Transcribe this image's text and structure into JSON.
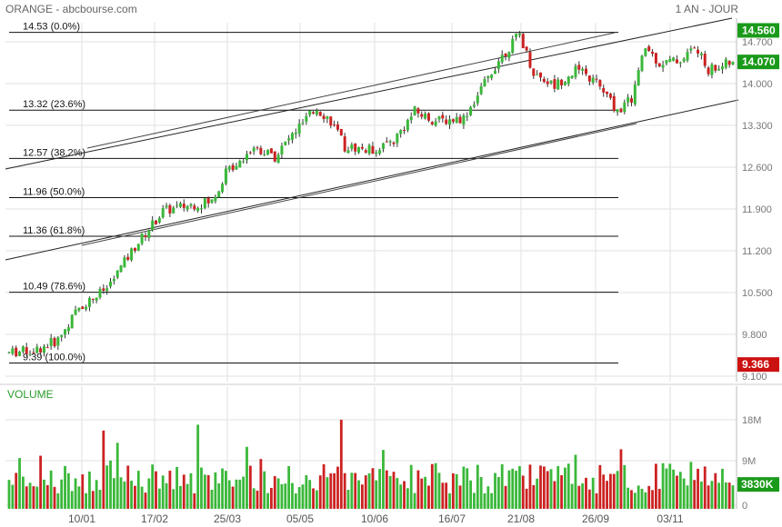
{
  "header": {
    "title": "ORANGE - abcbourse.com",
    "period": "1 AN - JOUR"
  },
  "chart_data": {
    "type": "candlestick",
    "price_axis": {
      "ticks": [
        "14.700",
        "14.000",
        "13.300",
        "12.600",
        "11.900",
        "11.200",
        "10.500",
        "9.800",
        "9.100"
      ],
      "range": [
        9.1,
        14.75
      ]
    },
    "price_badges": [
      {
        "label": "14.560",
        "value": 14.56,
        "color": "#1a9a1a"
      },
      {
        "label": "14.070",
        "value": 14.07,
        "color": "#1a9a1a"
      },
      {
        "label": "9.366",
        "value": 9.366,
        "color": "#cc1111"
      }
    ],
    "fibonacci": [
      {
        "label": "14.53  (0.0%)",
        "value": 14.53
      },
      {
        "label": "13.32  (23.6%)",
        "value": 13.32
      },
      {
        "label": "12.57  (38.2%)",
        "value": 12.57
      },
      {
        "label": "11.96  (50.0%)",
        "value": 11.96
      },
      {
        "label": "11.36  (61.8%)",
        "value": 11.36
      },
      {
        "label": "10.49  (78.6%)",
        "value": 10.49
      },
      {
        "label": "9.39  (100.0%)",
        "value": 9.39
      }
    ],
    "x_ticks": [
      "10/01",
      "17/02",
      "25/03",
      "05/05",
      "10/06",
      "16/07",
      "21/08",
      "26/09",
      "03/11"
    ],
    "volume_panel": {
      "label": "VOLUME",
      "ticks": [
        "18M",
        "9M",
        "0"
      ],
      "range": [
        0,
        20
      ],
      "badge": "3830K",
      "badge_value": 3.83
    },
    "anchors": [
      [
        0,
        9.55
      ],
      [
        8,
        9.6
      ],
      [
        14,
        9.75
      ],
      [
        20,
        10.25
      ],
      [
        28,
        10.55
      ],
      [
        36,
        11.2
      ],
      [
        44,
        11.75
      ],
      [
        52,
        11.85
      ],
      [
        58,
        11.9
      ],
      [
        62,
        12.35
      ],
      [
        70,
        12.75
      ],
      [
        76,
        12.6
      ],
      [
        82,
        13.0
      ],
      [
        88,
        13.35
      ],
      [
        92,
        13.15
      ],
      [
        96,
        12.75
      ],
      [
        104,
        12.7
      ],
      [
        110,
        12.85
      ],
      [
        116,
        13.3
      ],
      [
        122,
        13.15
      ],
      [
        130,
        13.2
      ],
      [
        134,
        13.55
      ],
      [
        140,
        14.1
      ],
      [
        146,
        14.5
      ],
      [
        150,
        13.9
      ],
      [
        156,
        13.7
      ],
      [
        162,
        13.95
      ],
      [
        168,
        13.75
      ],
      [
        174,
        13.3
      ],
      [
        178,
        13.5
      ],
      [
        182,
        14.3
      ],
      [
        186,
        14.05
      ],
      [
        192,
        14.1
      ],
      [
        196,
        14.3
      ],
      [
        200,
        13.95
      ],
      [
        206,
        14.05
      ]
    ],
    "n_candles": 208,
    "last_close": 14.07,
    "last_volume": 3.83
  }
}
